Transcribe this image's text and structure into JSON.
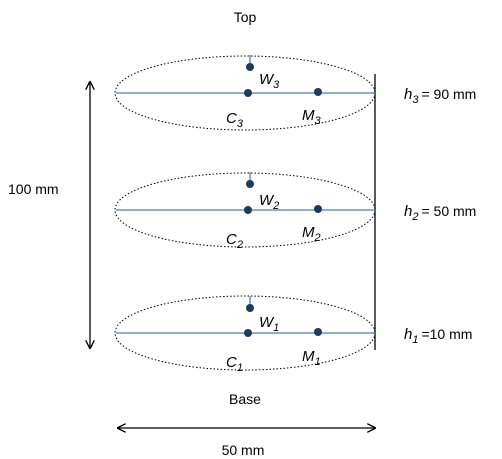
{
  "labels": {
    "top": "Top",
    "base": "Base",
    "height_dim": "100 mm",
    "width_dim": "50 mm"
  },
  "levels": [
    {
      "h_var": "h",
      "h_sub": "3",
      "h_val": "= 90 mm",
      "W": "W",
      "W_sub": "3",
      "C": "C",
      "C_sub": "3",
      "M": "M",
      "M_sub": "3"
    },
    {
      "h_var": "h",
      "h_sub": "2",
      "h_val": "= 50 mm",
      "W": "W",
      "W_sub": "2",
      "C": "C",
      "C_sub": "2",
      "M": "M",
      "M_sub": "2"
    },
    {
      "h_var": "h",
      "h_sub": "1",
      "h_val": "=10 mm",
      "W": "W",
      "W_sub": "1",
      "C": "C",
      "C_sub": "1",
      "M": "M",
      "M_sub": "1"
    }
  ],
  "colors": {
    "dot": "#1f3a5f",
    "line": "#4a7fb5",
    "outline": "#000000"
  }
}
